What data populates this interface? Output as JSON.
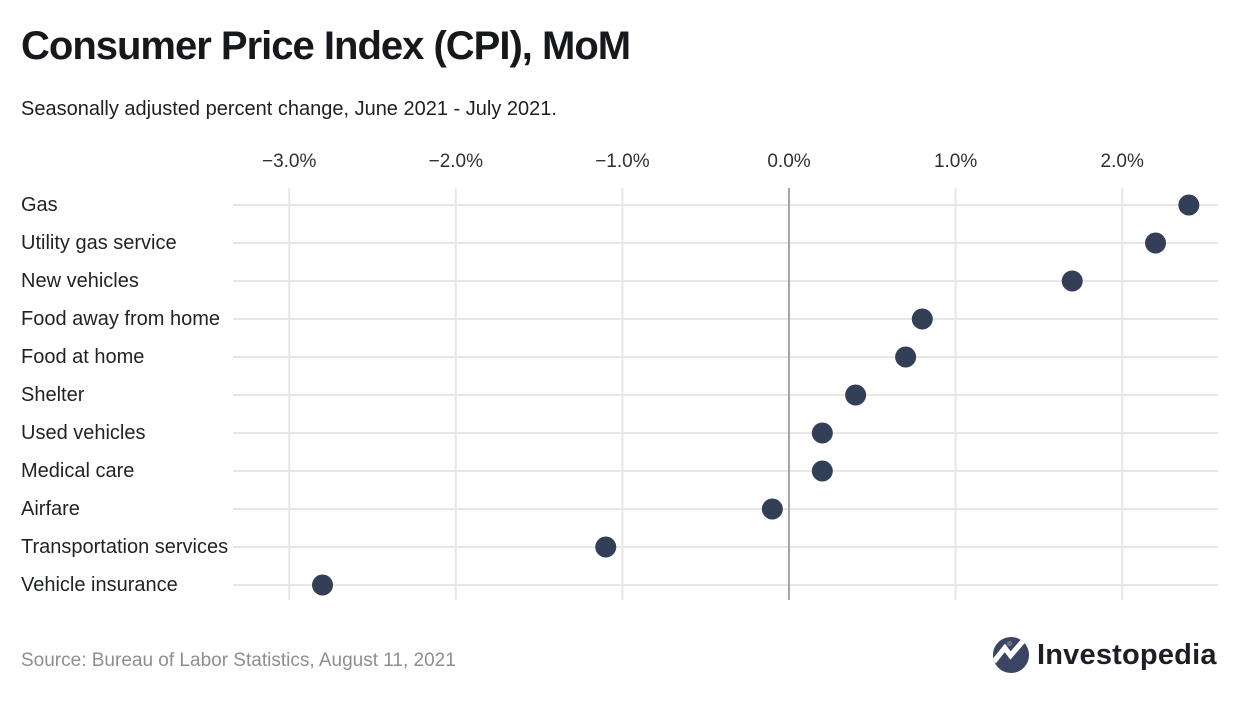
{
  "header": {
    "title": "Consumer Price Index (CPI), MoM",
    "subtitle": "Seasonally adjusted percent change, June 2021 - July 2021."
  },
  "chart_data": {
    "type": "scatter",
    "variant": "horizontal-dot-plot",
    "title": "Consumer Price Index (CPI), MoM",
    "subtitle": "Seasonally adjusted percent change, June 2021 - July 2021.",
    "categories": [
      "Gas",
      "Utility gas service",
      "New vehicles",
      "Food away from home",
      "Food at home",
      "Shelter",
      "Used vehicles",
      "Medical care",
      "Airfare",
      "Transportation services",
      "Vehicle insurance"
    ],
    "values": [
      2.4,
      2.2,
      1.7,
      0.8,
      0.7,
      0.4,
      0.2,
      0.2,
      -0.1,
      -1.1,
      -2.8
    ],
    "unit": "percent",
    "xlabel": "",
    "ylabel": "",
    "x_ticks": [
      -3,
      -2,
      -1,
      0,
      1,
      2
    ],
    "x_tick_labels": [
      "−3.0%",
      "−2.0%",
      "−1.0%",
      "0.0%",
      "1.0%",
      "2.0%"
    ],
    "xlim": [
      -3.34,
      2.58
    ],
    "axis_position": "top",
    "grid": true,
    "zero_line": true,
    "legend": "none",
    "colors": {
      "dot": "#333e57",
      "grid": "#e7e7e7",
      "zero_line": "#a6a6a6",
      "tick_text": "#2e3034",
      "category_text": "#1f2226"
    }
  },
  "footer": {
    "source": "Source: Bureau of Labor Statistics, August 11, 2021",
    "brand": "Investopedia",
    "brand_colors": {
      "circle": "#3b4563",
      "mark": "#ffffff",
      "dot": "#6e7280",
      "text": "#1c1f25"
    }
  }
}
